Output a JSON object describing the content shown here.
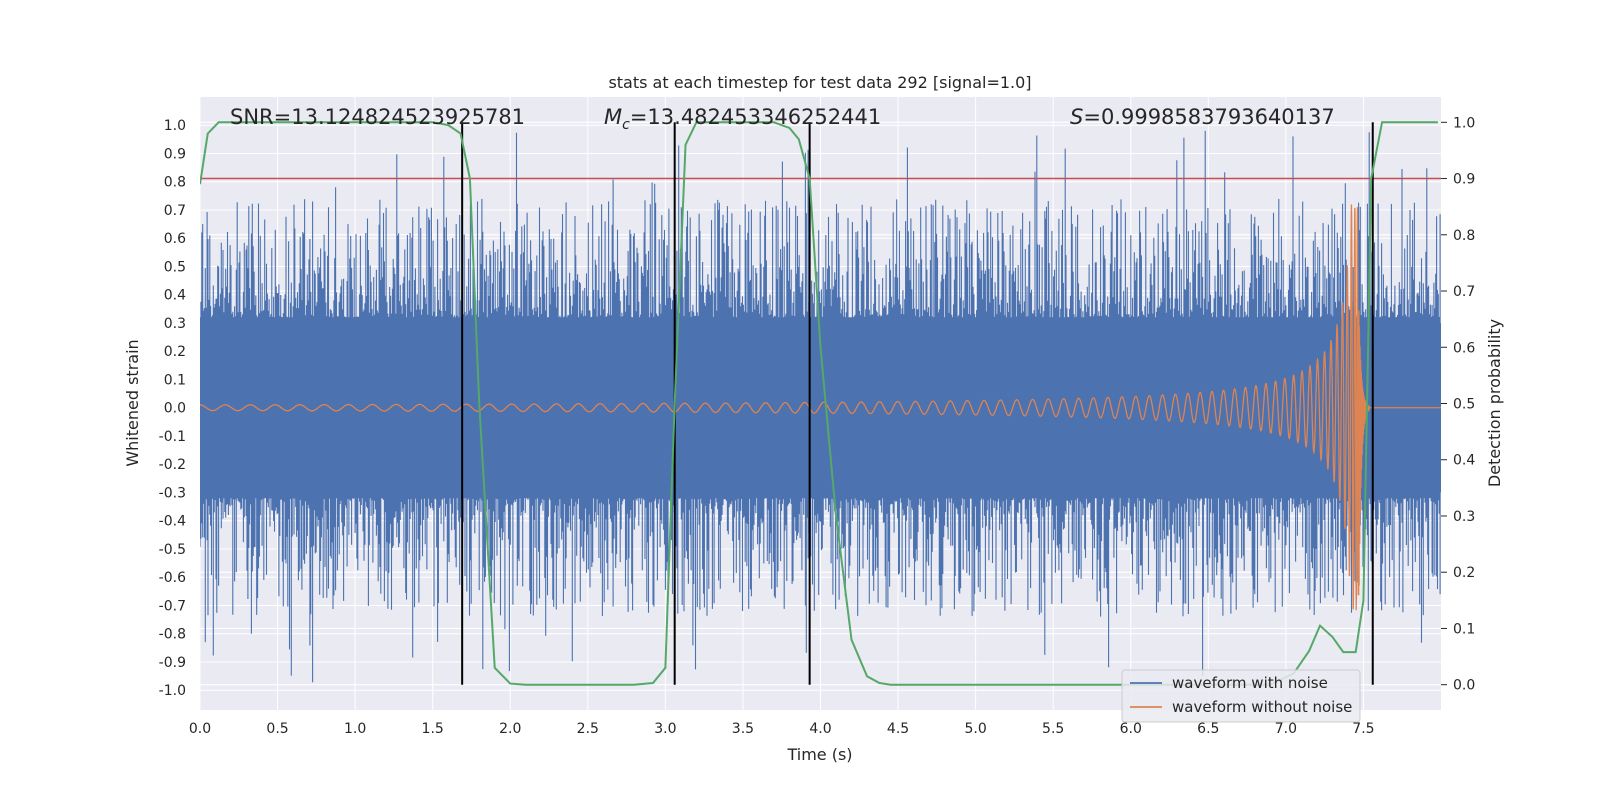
{
  "chart_data": {
    "type": "line",
    "title": "stats at each timestep for test data 292 [signal=1.0]",
    "xlabel": "Time (s)",
    "ylabel_left": "Whitened strain",
    "ylabel_right": "Detection probability",
    "xlim": [
      0.0,
      8.0
    ],
    "ylim_left": [
      -1.07,
      1.1
    ],
    "ylim_right": [
      -0.045,
      1.045
    ],
    "xticks": [
      "0.0",
      "0.5",
      "1.0",
      "1.5",
      "2.0",
      "2.5",
      "3.0",
      "3.5",
      "4.0",
      "4.5",
      "5.0",
      "5.5",
      "6.0",
      "6.5",
      "7.0",
      "7.5"
    ],
    "yticks_left": [
      "-1.0",
      "-0.9",
      "-0.8",
      "-0.7",
      "-0.6",
      "-0.5",
      "-0.4",
      "-0.3",
      "-0.2",
      "-0.1",
      "0.0",
      "0.1",
      "0.2",
      "0.3",
      "0.4",
      "0.5",
      "0.6",
      "0.7",
      "0.8",
      "0.9",
      "1.0"
    ],
    "yticks_right": [
      "0.0",
      "0.1",
      "0.2",
      "0.3",
      "0.4",
      "0.5",
      "0.6",
      "0.7",
      "0.8",
      "0.9",
      "1.0"
    ],
    "grid": true,
    "legend_position": "bottom-right",
    "annotations": {
      "snr": "SNR=13.124824523925781",
      "mc": "=13.482453346252441",
      "s": "=0.9998583793640137"
    },
    "threshold": {
      "axis": "right",
      "value": 0.9,
      "color": "#c44e52"
    },
    "event_markers_x": [
      1.69,
      3.06,
      3.93,
      7.56
    ],
    "series": [
      {
        "name": "waveform with noise",
        "axis": "left",
        "color": "#4c72b0",
        "band_core": 0.3,
        "band_peak_max": 0.99,
        "band_trough_min": -0.98
      },
      {
        "name": "waveform without noise",
        "axis": "left",
        "color": "#dd8452",
        "chirp": {
          "t_merge": 7.47,
          "amp_start": 0.01,
          "amp_peak": 0.72,
          "f_start": 13.0,
          "ringdown_end": 7.54
        }
      },
      {
        "name": "detection probability",
        "axis": "right",
        "color": "#55a868",
        "x": [
          0.0,
          0.05,
          0.12,
          0.2,
          0.5,
          1.0,
          1.5,
          1.6,
          1.68,
          1.74,
          1.8,
          1.9,
          2.0,
          2.1,
          2.5,
          2.8,
          2.92,
          3.0,
          3.06,
          3.13,
          3.2,
          3.3,
          3.5,
          3.7,
          3.8,
          3.86,
          3.93,
          4.0,
          4.1,
          4.2,
          4.3,
          4.38,
          4.45,
          5.0,
          6.0,
          6.9,
          7.05,
          7.15,
          7.22,
          7.3,
          7.37,
          7.45,
          7.5,
          7.55,
          7.62,
          7.7,
          7.85,
          7.98
        ],
        "y": [
          0.89,
          0.98,
          1.0,
          1.0,
          1.0,
          1.0,
          1.0,
          0.995,
          0.98,
          0.9,
          0.5,
          0.03,
          0.002,
          0.0,
          0.0,
          0.0,
          0.003,
          0.03,
          0.5,
          0.96,
          1.0,
          1.0,
          1.0,
          1.0,
          0.99,
          0.97,
          0.9,
          0.6,
          0.3,
          0.08,
          0.015,
          0.003,
          0.0,
          0.0,
          0.0,
          0.0,
          0.02,
          0.06,
          0.105,
          0.085,
          0.058,
          0.058,
          0.15,
          0.9,
          1.0,
          1.0,
          1.0,
          1.0
        ]
      }
    ]
  }
}
